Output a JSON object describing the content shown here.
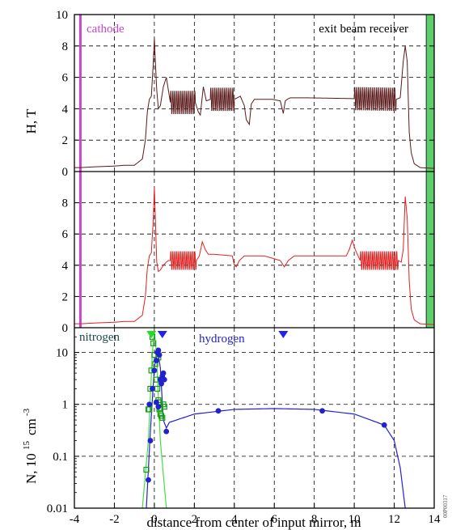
{
  "chart_data": [
    {
      "type": "line",
      "panel": "top",
      "ylabel": "H, T",
      "xlim": [
        -4,
        14
      ],
      "ylim": [
        0,
        10
      ],
      "yticks": [
        0,
        2,
        4,
        6,
        8,
        10
      ],
      "grid": true,
      "annotations": {
        "left": "cathode",
        "right": "exit beam receiver"
      },
      "colors": {
        "line": "#5a1a1a",
        "cathode": "#cc44cc",
        "receiver": "#5ccf6a"
      },
      "series": [
        {
          "values_x": [
            -4.0,
            -3.7,
            -3.0,
            -2.0,
            -1.5,
            -1.0,
            -0.6,
            -0.45,
            -0.35,
            -0.25,
            -0.15,
            -0.05,
            0.0,
            0.05,
            0.12,
            0.2,
            0.3,
            0.45,
            0.6,
            0.7,
            0.8,
            1.0,
            2.05,
            2.2,
            2.3,
            2.45,
            2.6,
            2.8,
            4.0,
            4.3,
            4.5,
            4.6,
            4.75,
            4.85,
            5.0,
            5.4,
            5.9,
            6.3,
            6.45,
            6.55,
            6.65,
            6.8,
            7.5,
            12.1,
            12.3,
            12.45,
            12.55,
            12.65,
            12.75,
            12.85,
            13.0,
            13.3,
            14.0
          ],
          "values_y": [
            0.25,
            0.25,
            0.3,
            0.35,
            0.4,
            0.4,
            0.8,
            2.0,
            3.8,
            4.6,
            4.8,
            7.0,
            8.5,
            7.0,
            5.2,
            4.0,
            4.2,
            5.4,
            6.0,
            5.2,
            4.4,
            4.4,
            4.4,
            3.8,
            3.6,
            5.4,
            4.5,
            4.6,
            4.6,
            4.8,
            4.2,
            3.3,
            3.0,
            4.3,
            4.6,
            4.6,
            4.6,
            4.5,
            3.7,
            4.5,
            4.6,
            4.7,
            4.7,
            4.6,
            4.7,
            7.0,
            8.0,
            7.0,
            2.5,
            1.2,
            0.5,
            0.25,
            0.2
          ],
          "oscillation_bands": [
            [
              0.8,
              2.05
            ],
            [
              2.8,
              4.0
            ],
            [
              10.0,
              12.1
            ]
          ]
        }
      ]
    },
    {
      "type": "line",
      "panel": "middle",
      "xlim": [
        -4,
        14
      ],
      "ylim": [
        0,
        10
      ],
      "yticks": [
        0,
        2,
        4,
        6,
        8
      ],
      "grid": true,
      "colors": {
        "line": "#e02020",
        "cathode": "#cc44cc",
        "receiver": "#5ccf6a"
      },
      "series": [
        {
          "values_x": [
            -4.0,
            -3.7,
            -3.0,
            -2.0,
            -1.5,
            -1.0,
            -0.6,
            -0.45,
            -0.35,
            -0.25,
            -0.15,
            -0.05,
            0.0,
            0.05,
            0.12,
            0.2,
            0.3,
            0.45,
            0.6,
            0.7,
            0.8,
            1.0,
            2.1,
            2.25,
            2.4,
            2.55,
            2.7,
            3.0,
            3.9,
            4.0,
            4.1,
            4.25,
            4.5,
            5.5,
            6.3,
            6.5,
            6.7,
            7.0,
            9.6,
            9.75,
            9.9,
            10.05,
            10.3,
            12.2,
            12.35,
            12.45,
            12.55,
            12.65,
            12.75,
            12.85,
            13.0,
            13.3,
            14.0
          ],
          "values_y": [
            0.25,
            0.25,
            0.3,
            0.35,
            0.4,
            0.4,
            0.8,
            2.0,
            3.8,
            4.6,
            4.8,
            7.0,
            9.0,
            7.0,
            4.2,
            3.6,
            3.7,
            4.0,
            4.2,
            4.3,
            4.3,
            4.3,
            4.3,
            4.6,
            5.5,
            5.0,
            4.7,
            4.7,
            4.6,
            4.0,
            3.9,
            4.3,
            4.6,
            4.6,
            4.3,
            3.9,
            4.3,
            4.6,
            4.6,
            5.0,
            5.6,
            5.0,
            4.3,
            4.3,
            4.2,
            5.0,
            8.4,
            7.0,
            3.0,
            1.2,
            0.5,
            0.25,
            0.2
          ],
          "oscillation_bands": [
            [
              0.8,
              2.1
            ],
            [
              10.3,
              12.2
            ]
          ]
        }
      ]
    },
    {
      "type": "scatter",
      "panel": "bottom",
      "xlabel": "distance from center of input mirror, m",
      "ylabel": "N, 10",
      "ylabel_exp1": "15",
      "ylabel_unit": "cm",
      "ylabel_exp2": "-3",
      "xlim": [
        -4,
        14
      ],
      "xticks": [
        -4,
        -2,
        0,
        2,
        4,
        6,
        8,
        10,
        12,
        14
      ],
      "ylim": [
        0.01,
        30
      ],
      "yscale": "log",
      "yticks": [
        0.01,
        0.1,
        1,
        10
      ],
      "ytick_labels": [
        "0.01",
        "0.1",
        "1",
        "10"
      ],
      "grid": true,
      "colors": {
        "nitrogen": "#1a9a1a",
        "nitrogen_line": "#44dd44",
        "hydrogen": "#2222cc",
        "nitrogen_label": "#1a4a4a",
        "triangle_green": "#22dd22",
        "triangle_blue": "#2222ee"
      },
      "triangle_markers": [
        {
          "series": "nitrogen",
          "x": -0.15
        },
        {
          "series": "hydrogen",
          "x": 0.4
        },
        {
          "series": "hydrogen",
          "x": 6.45
        }
      ],
      "series": [
        {
          "name": "nitrogen",
          "points_x": [
            -0.25,
            -0.2,
            -0.15,
            -0.1,
            -0.05,
            0.0,
            0.05,
            0.1,
            0.15,
            0.2,
            0.25,
            0.3,
            0.35,
            0.4,
            0.45,
            0.5,
            -0.3,
            -0.4,
            0.2,
            0.25,
            0.3
          ],
          "points_y": [
            0.8,
            2.0,
            4.5,
            20.0,
            15.0,
            9.0,
            6.0,
            3.0,
            2.0,
            1.2,
            0.8,
            0.65,
            0.6,
            0.55,
            1.0,
            0.9,
            0.8,
            0.055,
            8.0,
            1.1,
            0.85
          ],
          "curve_x": [
            -0.6,
            -0.3,
            -0.1,
            0.0,
            0.1,
            0.3,
            0.6
          ],
          "curve_y": [
            0.01,
            0.2,
            10.0,
            25.0,
            10.0,
            0.2,
            0.01
          ]
        },
        {
          "name": "hydrogen",
          "points_x": [
            -0.3,
            -0.2,
            -0.1,
            0.0,
            0.1,
            0.15,
            0.2,
            0.25,
            0.3,
            0.35,
            0.4,
            0.45,
            0.5,
            0.6,
            3.2,
            8.4,
            11.5,
            -0.25,
            0.1,
            0.2
          ],
          "points_y": [
            0.035,
            0.2,
            2.0,
            4.5,
            7.0,
            10.0,
            11.0,
            9.0,
            3.0,
            2.5,
            3.5,
            4.0,
            3.0,
            0.3,
            0.75,
            0.75,
            0.4,
            1.0,
            1.1,
            0.9
          ],
          "curve_x": [
            -0.4,
            -0.2,
            0.0,
            0.15,
            0.3,
            0.45,
            0.6,
            0.75,
            2.0,
            4.0,
            6.0,
            8.0,
            10.0,
            11.5,
            12.0,
            12.3,
            12.55
          ],
          "curve_y": [
            0.01,
            0.3,
            5.0,
            12.0,
            5.0,
            0.5,
            0.35,
            0.45,
            0.65,
            0.8,
            0.83,
            0.8,
            0.65,
            0.4,
            0.2,
            0.06,
            0.01
          ]
        }
      ],
      "labels": {
        "nitrogen": "nitrogen",
        "hydrogen": "hydrogen"
      }
    }
  ],
  "side_stamp": "00P00317"
}
